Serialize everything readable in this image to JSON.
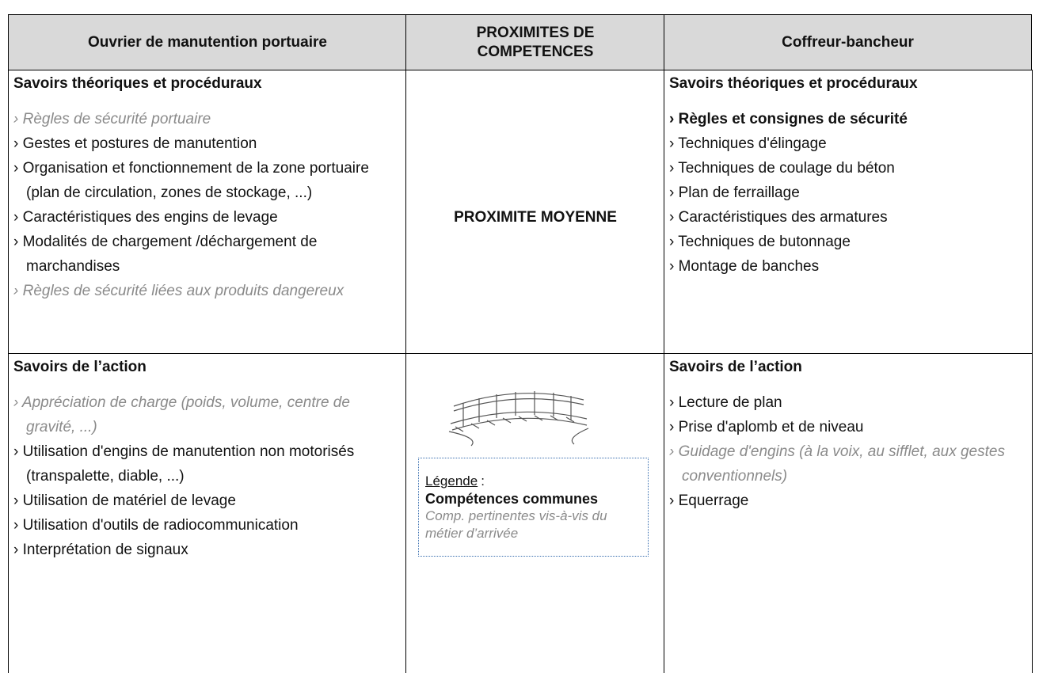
{
  "table": {
    "header": [
      "Ouvrier de manutention portuaire",
      "PROXIMITES DE COMPETENCES",
      "Coffreur-bancheur"
    ],
    "rows": [
      {
        "left": {
          "heading": "Savoirs théoriques et procéduraux",
          "items": [
            {
              "text": "› Règles de sécurité portuaire",
              "kind": "relevant"
            },
            {
              "text": "› Gestes et postures de manutention"
            },
            {
              "text": "› Organisation et fonctionnement de la zone portuaire (plan de circulation, zones de stockage, ...)"
            },
            {
              "text": "› Caractéristiques des engins de levage"
            },
            {
              "text": "› Modalités de chargement /déchargement de marchandises"
            },
            {
              "text": "› Règles de sécurité liées aux produits dangereux",
              "kind": "relevant"
            }
          ]
        },
        "middle": "PROXIMITE MOYENNE",
        "right": {
          "heading": "Savoirs théoriques et procéduraux",
          "items": [
            {
              "text": "› Règles et consignes de sécurité",
              "kind": "common"
            },
            {
              "text": "› Techniques d'élingage"
            },
            {
              "text": "› Techniques de coulage du béton"
            },
            {
              "text": "› Plan de ferraillage"
            },
            {
              "text": "› Caractéristiques des armatures"
            },
            {
              "text": "› Techniques de butonnage"
            },
            {
              "text": "› Montage de banches"
            }
          ]
        }
      },
      {
        "left": {
          "heading": "Savoirs de l’action",
          "items": [
            {
              "text": "› Appréciation de charge (poids, volume, centre de gravité, ...)",
              "kind": "relevant"
            },
            {
              "text": "› Utilisation d'engins de manutention non motorisés (transpalette, diable, ...)"
            },
            {
              "text": "› Utilisation de matériel de levage"
            },
            {
              "text": "› Utilisation d'outils de radiocommunication"
            },
            {
              "text": "›  Interprétation de signaux"
            }
          ]
        },
        "legend": {
          "title": "Légende",
          "separator": ":",
          "common": "Compétences communes",
          "relevant": "Comp. pertinentes vis-à-vis du métier d’arrivée"
        },
        "right": {
          "heading": "Savoirs de l’action",
          "items": [
            {
              "text": "› Lecture de plan"
            },
            {
              "text": "› Prise d'aplomb et de niveau"
            },
            {
              "text": "› Guidage d'engins (à la voix, au sifflet, aux gestes conventionnels)",
              "kind": "relevant"
            },
            {
              "text": "›  Equerrage"
            }
          ]
        }
      }
    ]
  }
}
